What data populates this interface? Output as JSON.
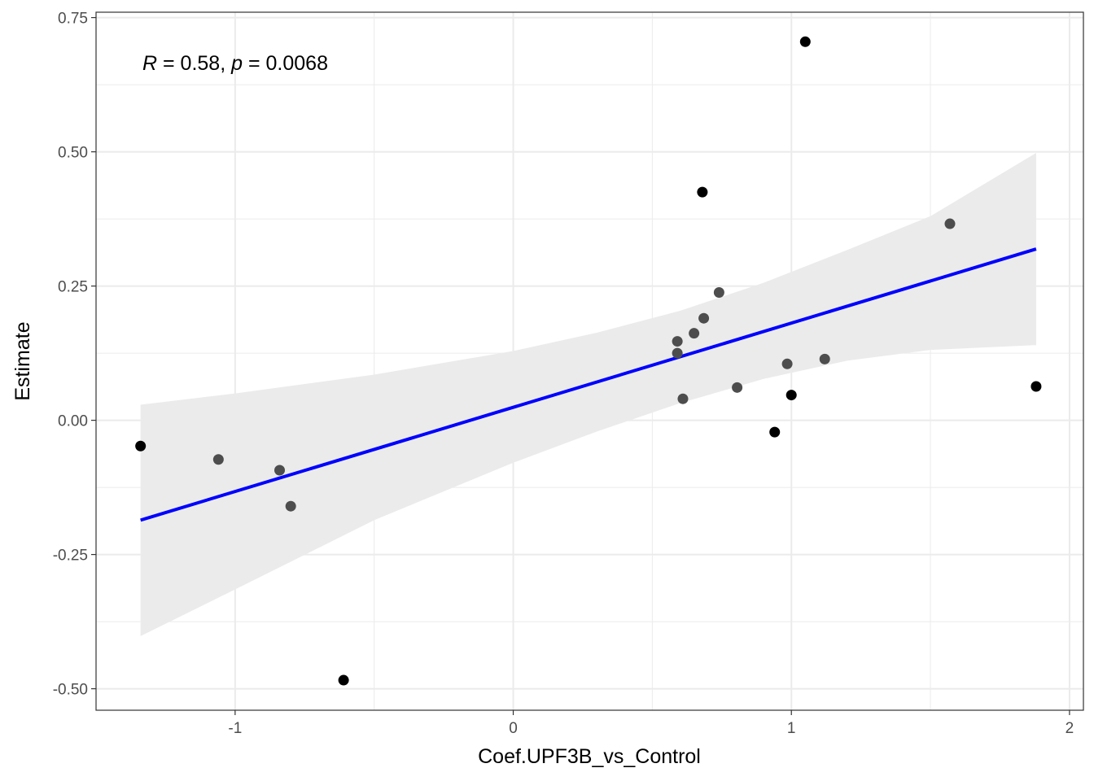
{
  "chart_data": {
    "type": "scatter",
    "title": "",
    "xlabel": "Coef.UPF3B_vs_Control",
    "ylabel": "Estimate",
    "xlim": [
      -1.5,
      2.05
    ],
    "ylim": [
      -0.54,
      0.76
    ],
    "x_ticks": [
      -1,
      0,
      1,
      2
    ],
    "x_tick_labels": [
      "-1",
      "0",
      "1",
      "2"
    ],
    "y_ticks": [
      -0.5,
      -0.25,
      0,
      0.25,
      0.5,
      0.75
    ],
    "y_tick_labels": [
      "-0.50",
      "-0.25",
      "0.00",
      "0.25",
      "0.50",
      "0.75"
    ],
    "grid": true,
    "annotation": {
      "r_symbol": "R",
      "r_text": " = 0.58, ",
      "p_symbol": "p",
      "p_text": " = 0.0068"
    },
    "points": [
      {
        "x": -1.34,
        "y": -0.048,
        "color": "#000000"
      },
      {
        "x": -1.06,
        "y": -0.073,
        "color": "#4d4d4d"
      },
      {
        "x": -0.84,
        "y": -0.093,
        "color": "#4d4d4d"
      },
      {
        "x": -0.8,
        "y": -0.16,
        "color": "#4d4d4d"
      },
      {
        "x": -0.61,
        "y": -0.484,
        "color": "#000000"
      },
      {
        "x": 0.59,
        "y": 0.147,
        "color": "#4d4d4d"
      },
      {
        "x": 0.59,
        "y": 0.125,
        "color": "#4d4d4d"
      },
      {
        "x": 0.61,
        "y": 0.04,
        "color": "#4d4d4d"
      },
      {
        "x": 0.65,
        "y": 0.162,
        "color": "#4d4d4d"
      },
      {
        "x": 0.68,
        "y": 0.425,
        "color": "#000000"
      },
      {
        "x": 0.685,
        "y": 0.19,
        "color": "#4d4d4d"
      },
      {
        "x": 0.74,
        "y": 0.238,
        "color": "#4d4d4d"
      },
      {
        "x": 0.805,
        "y": 0.061,
        "color": "#4d4d4d"
      },
      {
        "x": 0.94,
        "y": -0.022,
        "color": "#000000"
      },
      {
        "x": 0.985,
        "y": 0.105,
        "color": "#4d4d4d"
      },
      {
        "x": 1.0,
        "y": 0.047,
        "color": "#000000"
      },
      {
        "x": 1.05,
        "y": 0.705,
        "color": "#000000"
      },
      {
        "x": 1.12,
        "y": 0.114,
        "color": "#4d4d4d"
      },
      {
        "x": 1.57,
        "y": 0.366,
        "color": "#4d4d4d"
      },
      {
        "x": 1.88,
        "y": 0.063,
        "color": "#000000"
      }
    ],
    "fit_line": {
      "x": [
        -1.34,
        1.88
      ],
      "y": [
        -0.186,
        0.319
      ],
      "color": "#0000ff"
    },
    "confidence_band": {
      "x": [
        -1.34,
        -1.0,
        -0.5,
        0.0,
        0.3,
        0.6,
        0.9,
        1.2,
        1.5,
        1.88
      ],
      "lower": [
        -0.402,
        -0.315,
        -0.186,
        -0.079,
        -0.021,
        0.032,
        0.077,
        0.111,
        0.131,
        0.14
      ],
      "upper": [
        0.029,
        0.05,
        0.085,
        0.129,
        0.163,
        0.204,
        0.256,
        0.317,
        0.38,
        0.498
      ],
      "color": "#ebebeb"
    }
  }
}
